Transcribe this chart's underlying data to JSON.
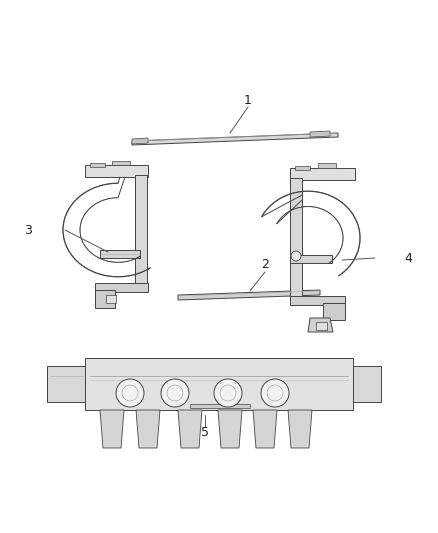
{
  "background_color": "#ffffff",
  "line_color": "#444444",
  "label_color": "#222222",
  "label_fontsize": 9,
  "fig_width": 4.38,
  "fig_height": 5.33,
  "dpi": 100
}
